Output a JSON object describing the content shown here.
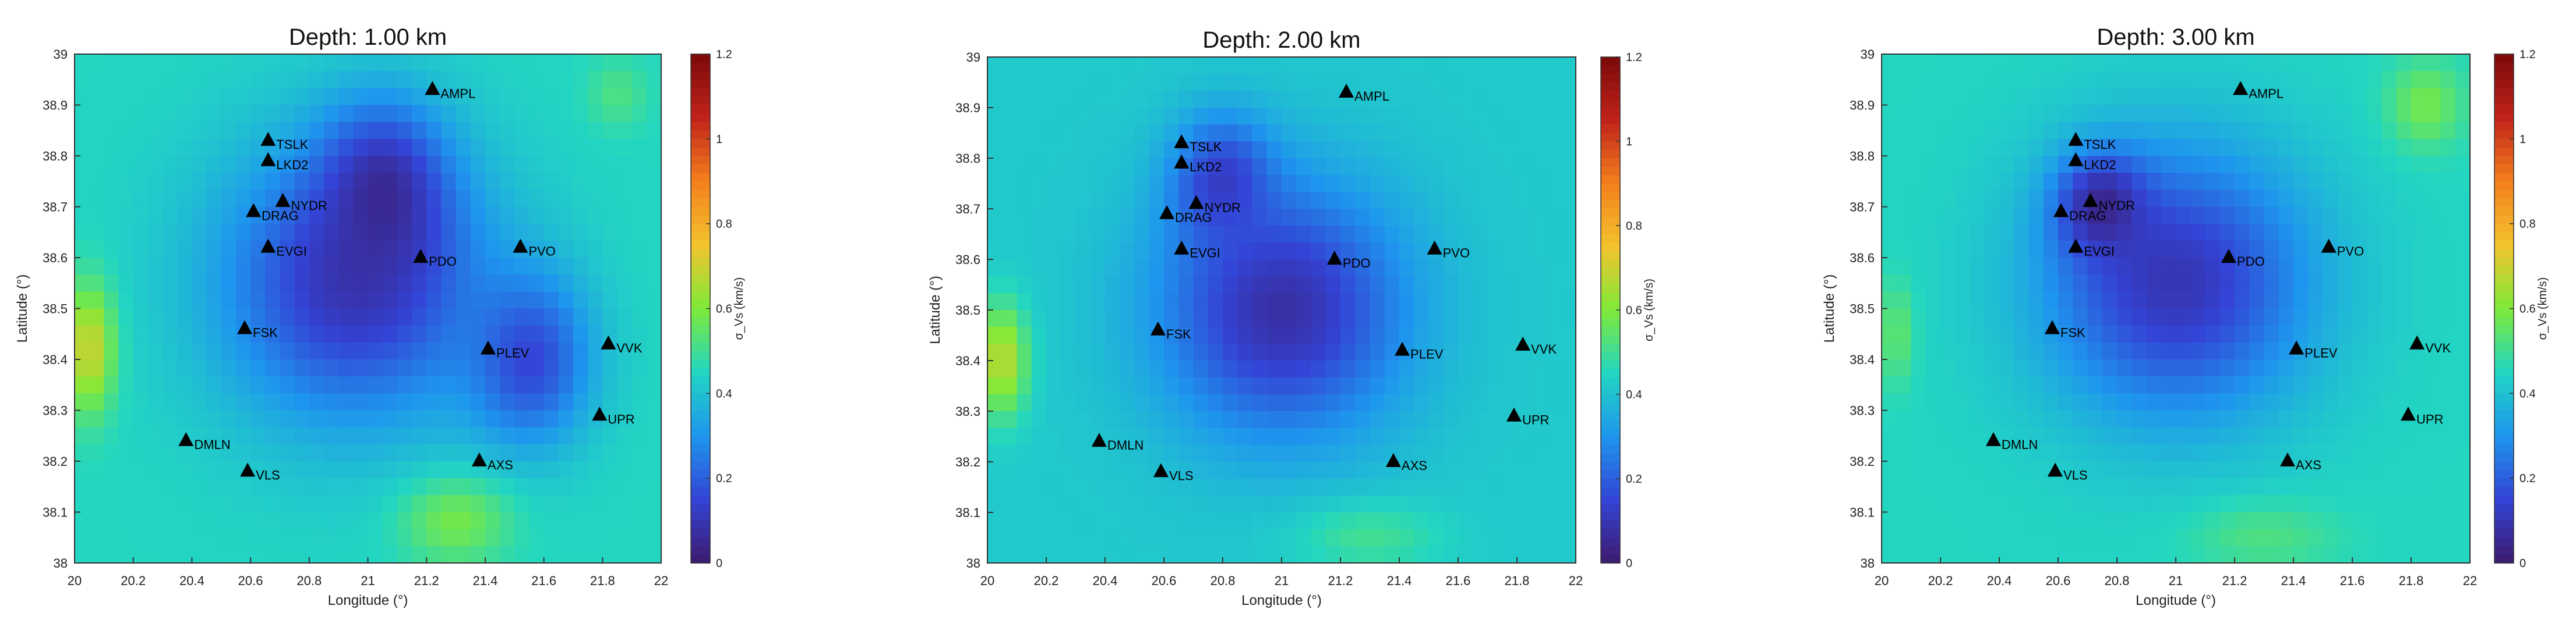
{
  "colorbar": {
    "label": "σ_Vs (km/s)",
    "ticks": [
      0,
      0.2,
      0.4,
      0.6,
      0.8,
      1,
      1.2
    ],
    "tick_labels": [
      "0",
      "0.2",
      "0.4",
      "0.6",
      "0.8",
      "1",
      "1.2"
    ],
    "range": [
      0,
      1.2
    ],
    "colormap": "parula-like",
    "colors": [
      "#3d1a6e",
      "#3344d6",
      "#1e96ee",
      "#22d6c2",
      "#7fea38",
      "#f3c32e",
      "#f3801c",
      "#c1221a",
      "#7a0a0a"
    ]
  },
  "stations": [
    {
      "name": "AMPL",
      "lon": 21.22,
      "lat": 38.93
    },
    {
      "name": "TSLK",
      "lon": 20.66,
      "lat": 38.83
    },
    {
      "name": "LKD2",
      "lon": 20.66,
      "lat": 38.79
    },
    {
      "name": "NYDR",
      "lon": 20.71,
      "lat": 38.71
    },
    {
      "name": "DRAG",
      "lon": 20.61,
      "lat": 38.69
    },
    {
      "name": "EVGI",
      "lon": 20.66,
      "lat": 38.62
    },
    {
      "name": "PDO",
      "lon": 21.18,
      "lat": 38.6
    },
    {
      "name": "PVO",
      "lon": 21.52,
      "lat": 38.62
    },
    {
      "name": "FSK",
      "lon": 20.58,
      "lat": 38.46
    },
    {
      "name": "PLEV",
      "lon": 21.41,
      "lat": 38.42
    },
    {
      "name": "VVK",
      "lon": 21.82,
      "lat": 38.43
    },
    {
      "name": "UPR",
      "lon": 21.79,
      "lat": 38.29
    },
    {
      "name": "DMLN",
      "lon": 20.38,
      "lat": 38.24
    },
    {
      "name": "VLS",
      "lon": 20.59,
      "lat": 38.18
    },
    {
      "name": "AXS",
      "lon": 21.38,
      "lat": 38.2
    }
  ],
  "chart_data": [
    {
      "type": "heatmap",
      "title": "Depth: 1.00 km",
      "xlabel": "Longitude (°)",
      "ylabel": "Latitude (°)",
      "xlim": [
        20,
        22
      ],
      "ylim": [
        38,
        39
      ],
      "xticks": [
        "20",
        "20.2",
        "20.4",
        "20.6",
        "20.8",
        "21",
        "21.2",
        "21.4",
        "21.6",
        "21.8",
        "22"
      ],
      "yticks": [
        "38",
        "38.1",
        "38.2",
        "38.3",
        "38.4",
        "38.5",
        "38.6",
        "38.7",
        "38.8",
        "38.9",
        "39"
      ],
      "background_value": 0.45,
      "features": [
        {
          "kind": "low",
          "lon": 20.95,
          "lat": 38.55,
          "rlon": 0.55,
          "rlat": 0.33,
          "value": 0.1
        },
        {
          "kind": "low",
          "lon": 21.05,
          "lat": 38.72,
          "rlon": 0.25,
          "rlat": 0.2,
          "value": 0.05
        },
        {
          "kind": "low",
          "lon": 21.55,
          "lat": 38.4,
          "rlon": 0.25,
          "rlat": 0.2,
          "value": 0.15
        },
        {
          "kind": "high",
          "lon": 20.05,
          "lat": 38.42,
          "rlon": 0.1,
          "rlat": 0.15,
          "value": 0.7
        },
        {
          "kind": "high",
          "lon": 21.3,
          "lat": 38.08,
          "rlon": 0.22,
          "rlat": 0.1,
          "value": 0.58
        },
        {
          "kind": "high",
          "lon": 21.85,
          "lat": 38.92,
          "rlon": 0.12,
          "rlat": 0.08,
          "value": 0.52
        }
      ]
    },
    {
      "type": "heatmap",
      "title": "Depth: 2.00 km",
      "xlabel": "Longitude (°)",
      "ylabel": "Latitude (°)",
      "xlim": [
        20,
        22
      ],
      "ylim": [
        38,
        39
      ],
      "xticks": [
        "20",
        "20.2",
        "20.4",
        "20.6",
        "20.8",
        "21",
        "21.2",
        "21.4",
        "21.6",
        "21.8",
        "22"
      ],
      "yticks": [
        "38",
        "38.1",
        "38.2",
        "38.3",
        "38.4",
        "38.5",
        "38.6",
        "38.7",
        "38.8",
        "38.9",
        "39"
      ],
      "background_value": 0.42,
      "features": [
        {
          "kind": "low",
          "lon": 21.0,
          "lat": 38.5,
          "rlon": 0.5,
          "rlat": 0.3,
          "value": 0.08
        },
        {
          "kind": "low",
          "lon": 20.8,
          "lat": 38.75,
          "rlon": 0.2,
          "rlat": 0.15,
          "value": 0.12
        },
        {
          "kind": "high",
          "lon": 20.05,
          "lat": 38.4,
          "rlon": 0.1,
          "rlat": 0.13,
          "value": 0.68
        },
        {
          "kind": "high",
          "lon": 21.3,
          "lat": 38.05,
          "rlon": 0.3,
          "rlat": 0.08,
          "value": 0.5
        }
      ]
    },
    {
      "type": "heatmap",
      "title": "Depth: 3.00 km",
      "xlabel": "Longitude (°)",
      "ylabel": "Latitude (°)",
      "xlim": [
        20,
        22
      ],
      "ylim": [
        38,
        39
      ],
      "xticks": [
        "20",
        "20.2",
        "20.4",
        "20.6",
        "20.8",
        "21",
        "21.2",
        "21.4",
        "21.6",
        "21.8",
        "22"
      ],
      "yticks": [
        "38",
        "38.1",
        "38.2",
        "38.3",
        "38.4",
        "38.5",
        "38.6",
        "38.7",
        "38.8",
        "38.9",
        "39"
      ],
      "background_value": 0.45,
      "features": [
        {
          "kind": "low",
          "lon": 21.0,
          "lat": 38.55,
          "rlon": 0.55,
          "rlat": 0.32,
          "value": 0.1
        },
        {
          "kind": "low",
          "lon": 20.75,
          "lat": 38.7,
          "rlon": 0.18,
          "rlat": 0.12,
          "value": 0.04
        },
        {
          "kind": "high",
          "lon": 21.85,
          "lat": 38.9,
          "rlon": 0.15,
          "rlat": 0.1,
          "value": 0.58
        },
        {
          "kind": "high",
          "lon": 21.3,
          "lat": 38.05,
          "rlon": 0.3,
          "rlat": 0.08,
          "value": 0.52
        },
        {
          "kind": "high",
          "lon": 20.05,
          "lat": 38.45,
          "rlon": 0.07,
          "rlat": 0.12,
          "value": 0.55
        }
      ]
    }
  ]
}
